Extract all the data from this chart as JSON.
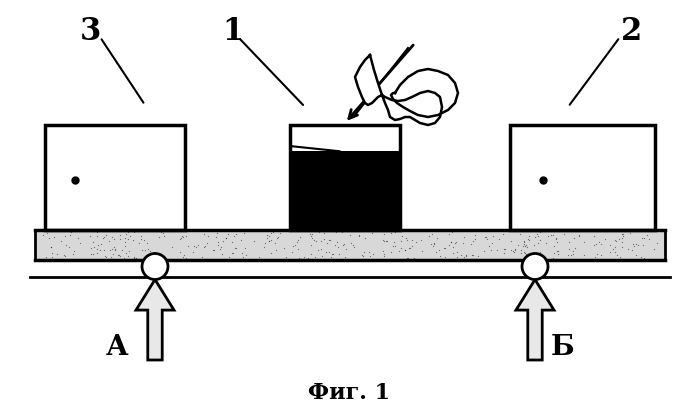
{
  "title": "Фиг. 1",
  "bg_color": "#ffffff",
  "label_3": "3",
  "label_1": "1",
  "label_2": "2",
  "label_A": "А",
  "label_B": "Б",
  "title_fontsize": 16,
  "label_fontsize": 20
}
